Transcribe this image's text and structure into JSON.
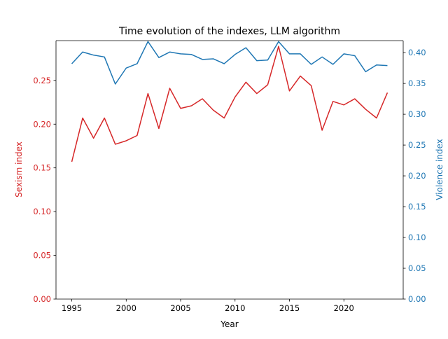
{
  "chart_data": {
    "type": "line",
    "title": "Time evolution of the indexes, LLM algorithm",
    "xlabel": "Year",
    "x": [
      1995,
      1996,
      1997,
      1998,
      1999,
      2000,
      2001,
      2002,
      2003,
      2004,
      2005,
      2006,
      2007,
      2008,
      2009,
      2010,
      2011,
      2012,
      2013,
      2014,
      2015,
      2016,
      2017,
      2018,
      2019,
      2020,
      2021,
      2022,
      2023,
      2024
    ],
    "xlim": [
      1993.55,
      2025.45
    ],
    "xticks": [
      "1995",
      "2000",
      "2005",
      "2010",
      "2015",
      "2020"
    ],
    "left_axis": {
      "label": "Sexism index",
      "color": "#d62728",
      "ylim": [
        0,
        0.2955
      ],
      "ticks": [
        "0.00",
        "0.05",
        "0.10",
        "0.15",
        "0.20",
        "0.25"
      ]
    },
    "right_axis": {
      "label": "Violence index",
      "color": "#1f77b4",
      "ylim": [
        0,
        0.4195
      ],
      "ticks": [
        "0.00",
        "0.05",
        "0.10",
        "0.15",
        "0.20",
        "0.25",
        "0.30",
        "0.35",
        "0.40"
      ]
    },
    "series": [
      {
        "axis": "left",
        "color": "#d62728",
        "values": [
          0.157,
          0.207,
          0.184,
          0.207,
          0.177,
          0.181,
          0.187,
          0.235,
          0.195,
          0.241,
          0.218,
          0.221,
          0.229,
          0.216,
          0.207,
          0.231,
          0.248,
          0.235,
          0.245,
          0.289,
          0.238,
          0.255,
          0.244,
          0.193,
          0.226,
          0.222,
          0.229,
          0.217,
          0.207,
          0.236
        ]
      },
      {
        "axis": "right",
        "color": "#1f77b4",
        "values": [
          0.382,
          0.401,
          0.396,
          0.393,
          0.349,
          0.375,
          0.382,
          0.418,
          0.392,
          0.401,
          0.398,
          0.397,
          0.389,
          0.39,
          0.382,
          0.397,
          0.408,
          0.387,
          0.388,
          0.418,
          0.398,
          0.398,
          0.381,
          0.393,
          0.381,
          0.398,
          0.395,
          0.369,
          0.38,
          0.379
        ]
      }
    ],
    "grid": false
  }
}
